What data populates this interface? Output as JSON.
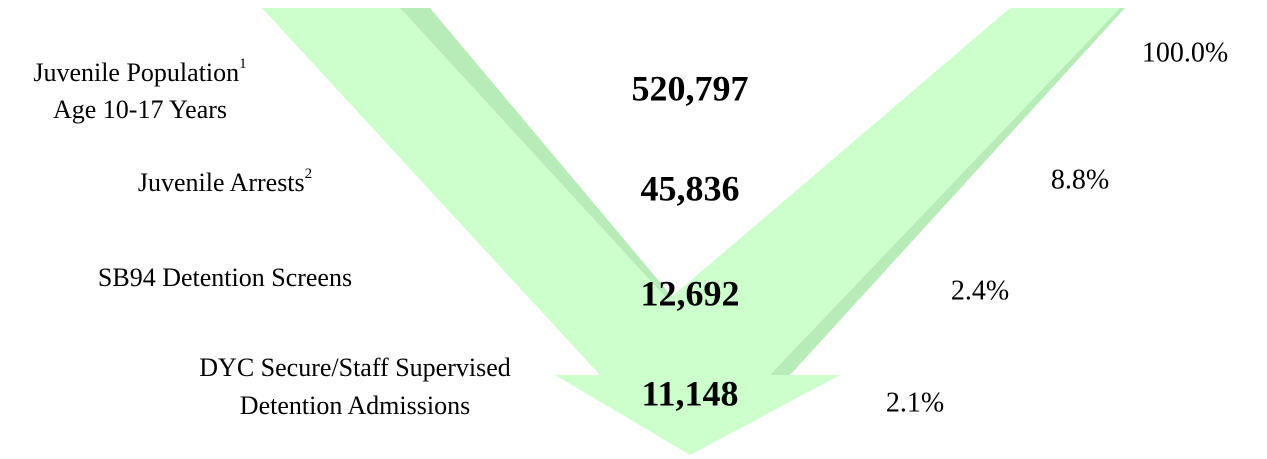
{
  "rows": [
    {
      "label": [
        "Juvenile Population",
        "Age 10-17 Years"
      ],
      "footnote": "1",
      "count": "520,797",
      "percent": "100.0%"
    },
    {
      "label": [
        "Juvenile Arrests"
      ],
      "footnote": "2",
      "count": "45,836",
      "percent": "8.8%"
    },
    {
      "label": [
        "SB94 Detention Screens"
      ],
      "count": "12,692",
      "percent": "2.4%"
    },
    {
      "label": [
        "DYC Secure/Staff Supervised",
        "Detention Admissions"
      ],
      "count": "11,148",
      "percent": "2.1%"
    }
  ]
}
